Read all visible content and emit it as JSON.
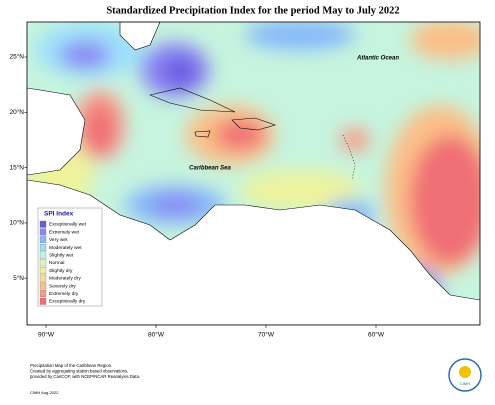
{
  "title": "Standardized Precipitation Index for the period May to July 2022",
  "map_labels": {
    "ocean": "Atlantic Ocean",
    "sea": "Caribbean Sea"
  },
  "longitude_labels": [
    "90°W",
    "80°W",
    "70°W",
    "60°W"
  ],
  "latitude_labels": [
    "25°N",
    "20°N",
    "15°N",
    "10°N",
    "5°N"
  ],
  "legend": {
    "title": "SPI Index",
    "entries": [
      {
        "label": "Exceptionally wet",
        "color": "#6a5ce0"
      },
      {
        "label": "Extremely wet",
        "color": "#8c86f4"
      },
      {
        "label": "Very wet",
        "color": "#86b8fb"
      },
      {
        "label": "Moderately wet",
        "color": "#9ee0fb"
      },
      {
        "label": "Slightly wet",
        "color": "#bff3e6"
      },
      {
        "label": "Normal",
        "color": "#d9f6c3"
      },
      {
        "label": "Slightly dry",
        "color": "#eef39c"
      },
      {
        "label": "Moderately dry",
        "color": "#fbdc8c"
      },
      {
        "label": "Severely dry",
        "color": "#fbbf88"
      },
      {
        "label": "Extremely dry",
        "color": "#f99a88"
      },
      {
        "label": "Exceptionally dry",
        "color": "#f06e74"
      }
    ]
  },
  "footer": {
    "lines": [
      "Precipitation Map of the Caribbean Region.",
      "Created by aggregating station based observations,",
      "provided by CariCOF, with NCEP/NCAR Reanalysis Data."
    ],
    "credit": "CIMH Aug-2022"
  },
  "logo_text": "CIMH"
}
